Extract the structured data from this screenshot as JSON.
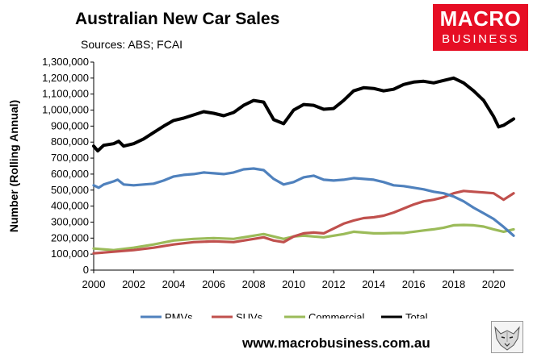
{
  "header": {
    "title": "Australian New Car Sales",
    "subtitle": "Sources: ABS; FCAI"
  },
  "logo": {
    "line1": "MACRO",
    "line2": "BUSINESS"
  },
  "footer": {
    "url": "www.macrobusiness.com.au"
  },
  "colors": {
    "PMVs": "#4f81bd",
    "SUVs": "#c0504d",
    "Commercial": "#9bbb59",
    "Total": "#000000",
    "logo_bg": "#e60e24"
  },
  "chart_data": {
    "type": "line",
    "title": "Australian New Car Sales",
    "xlabel": "",
    "ylabel": "Number (Rolling Annual)",
    "xlim": [
      2000,
      2021
    ],
    "ylim": [
      0,
      1300000
    ],
    "grid": false,
    "legend": "bottom",
    "x_ticks": [
      2000,
      2002,
      2004,
      2006,
      2008,
      2010,
      2012,
      2014,
      2016,
      2018,
      2020
    ],
    "x_tick_labels": [
      "2000",
      "2002",
      "2004",
      "2006",
      "2008",
      "2010",
      "2012",
      "2014",
      "2016",
      "2018",
      "2020"
    ],
    "y_ticks": [
      0,
      100000,
      200000,
      300000,
      400000,
      500000,
      600000,
      700000,
      800000,
      900000,
      1000000,
      1100000,
      1200000,
      1300000
    ],
    "y_tick_labels": [
      "0",
      "100,000",
      "200,000",
      "300,000",
      "400,000",
      "500,000",
      "600,000",
      "700,000",
      "800,000",
      "900,000",
      "1,000,000",
      "1,100,000",
      "1,200,000",
      "1,300,000"
    ],
    "series": [
      {
        "name": "PMVs",
        "x": [
          2000,
          2000.25,
          2000.5,
          2001,
          2001.2,
          2001.5,
          2002,
          2003,
          2003.5,
          2004,
          2004.5,
          2005,
          2005.5,
          2006,
          2006.5,
          2007,
          2007.5,
          2008,
          2008.5,
          2009,
          2009.5,
          2010,
          2010.5,
          2011,
          2011.5,
          2012,
          2012.5,
          2013,
          2013.5,
          2014,
          2014.5,
          2015,
          2015.5,
          2016,
          2016.5,
          2017,
          2017.5,
          2018,
          2018.5,
          2019,
          2019.5,
          2020,
          2020.5,
          2021
        ],
        "y": [
          530000,
          515000,
          535000,
          555000,
          565000,
          535000,
          530000,
          540000,
          560000,
          585000,
          595000,
          600000,
          610000,
          605000,
          600000,
          610000,
          630000,
          635000,
          625000,
          570000,
          535000,
          550000,
          580000,
          590000,
          565000,
          560000,
          565000,
          575000,
          570000,
          565000,
          550000,
          530000,
          525000,
          515000,
          505000,
          490000,
          480000,
          460000,
          430000,
          390000,
          355000,
          320000,
          270000,
          215000
        ]
      },
      {
        "name": "SUVs",
        "x": [
          2000,
          2001,
          2002,
          2003,
          2004,
          2005,
          2006,
          2007,
          2008,
          2008.5,
          2009,
          2009.5,
          2010,
          2010.5,
          2011,
          2011.5,
          2012,
          2012.5,
          2013,
          2013.5,
          2014,
          2014.5,
          2015,
          2015.5,
          2016,
          2016.5,
          2017,
          2017.5,
          2018,
          2018.5,
          2019,
          2019.5,
          2020,
          2020.5,
          2021
        ],
        "y": [
          105000,
          115000,
          125000,
          140000,
          160000,
          175000,
          180000,
          175000,
          195000,
          205000,
          185000,
          175000,
          210000,
          230000,
          235000,
          230000,
          260000,
          290000,
          310000,
          325000,
          330000,
          340000,
          360000,
          385000,
          410000,
          430000,
          440000,
          455000,
          480000,
          495000,
          490000,
          485000,
          480000,
          440000,
          480000
        ]
      },
      {
        "name": "Commercial",
        "x": [
          2000,
          2001,
          2002,
          2003,
          2004,
          2005,
          2006,
          2007,
          2008,
          2008.5,
          2009,
          2009.5,
          2010,
          2010.5,
          2011,
          2011.5,
          2012,
          2012.5,
          2013,
          2013.5,
          2014,
          2014.5,
          2015,
          2015.5,
          2016,
          2016.5,
          2017,
          2017.5,
          2018,
          2018.5,
          2019,
          2019.5,
          2020,
          2020.5,
          2021
        ],
        "y": [
          135000,
          125000,
          140000,
          160000,
          185000,
          195000,
          200000,
          195000,
          215000,
          225000,
          210000,
          195000,
          210000,
          215000,
          210000,
          205000,
          215000,
          225000,
          240000,
          235000,
          230000,
          230000,
          232000,
          232000,
          240000,
          248000,
          255000,
          265000,
          280000,
          282000,
          280000,
          272000,
          255000,
          240000,
          255000
        ]
      },
      {
        "name": "Total",
        "x": [
          2000,
          2000.2,
          2000.5,
          2001,
          2001.25,
          2001.5,
          2002,
          2002.5,
          2003,
          2003.5,
          2004,
          2004.5,
          2005,
          2005.5,
          2006,
          2006.5,
          2007,
          2007.5,
          2008,
          2008.5,
          2009,
          2009.5,
          2010,
          2010.5,
          2011,
          2011.5,
          2012,
          2012.5,
          2013,
          2013.5,
          2014,
          2014.5,
          2015,
          2015.5,
          2016,
          2016.5,
          2017,
          2017.5,
          2018,
          2018.5,
          2019,
          2019.5,
          2020,
          2020.25,
          2020.5,
          2021
        ],
        "y": [
          775000,
          745000,
          780000,
          790000,
          805000,
          775000,
          790000,
          820000,
          860000,
          900000,
          935000,
          950000,
          970000,
          990000,
          980000,
          965000,
          985000,
          1030000,
          1060000,
          1050000,
          940000,
          915000,
          1000000,
          1035000,
          1030000,
          1005000,
          1010000,
          1060000,
          1120000,
          1140000,
          1135000,
          1120000,
          1130000,
          1160000,
          1175000,
          1180000,
          1170000,
          1185000,
          1200000,
          1170000,
          1120000,
          1060000,
          960000,
          895000,
          905000,
          945000
        ]
      }
    ]
  }
}
